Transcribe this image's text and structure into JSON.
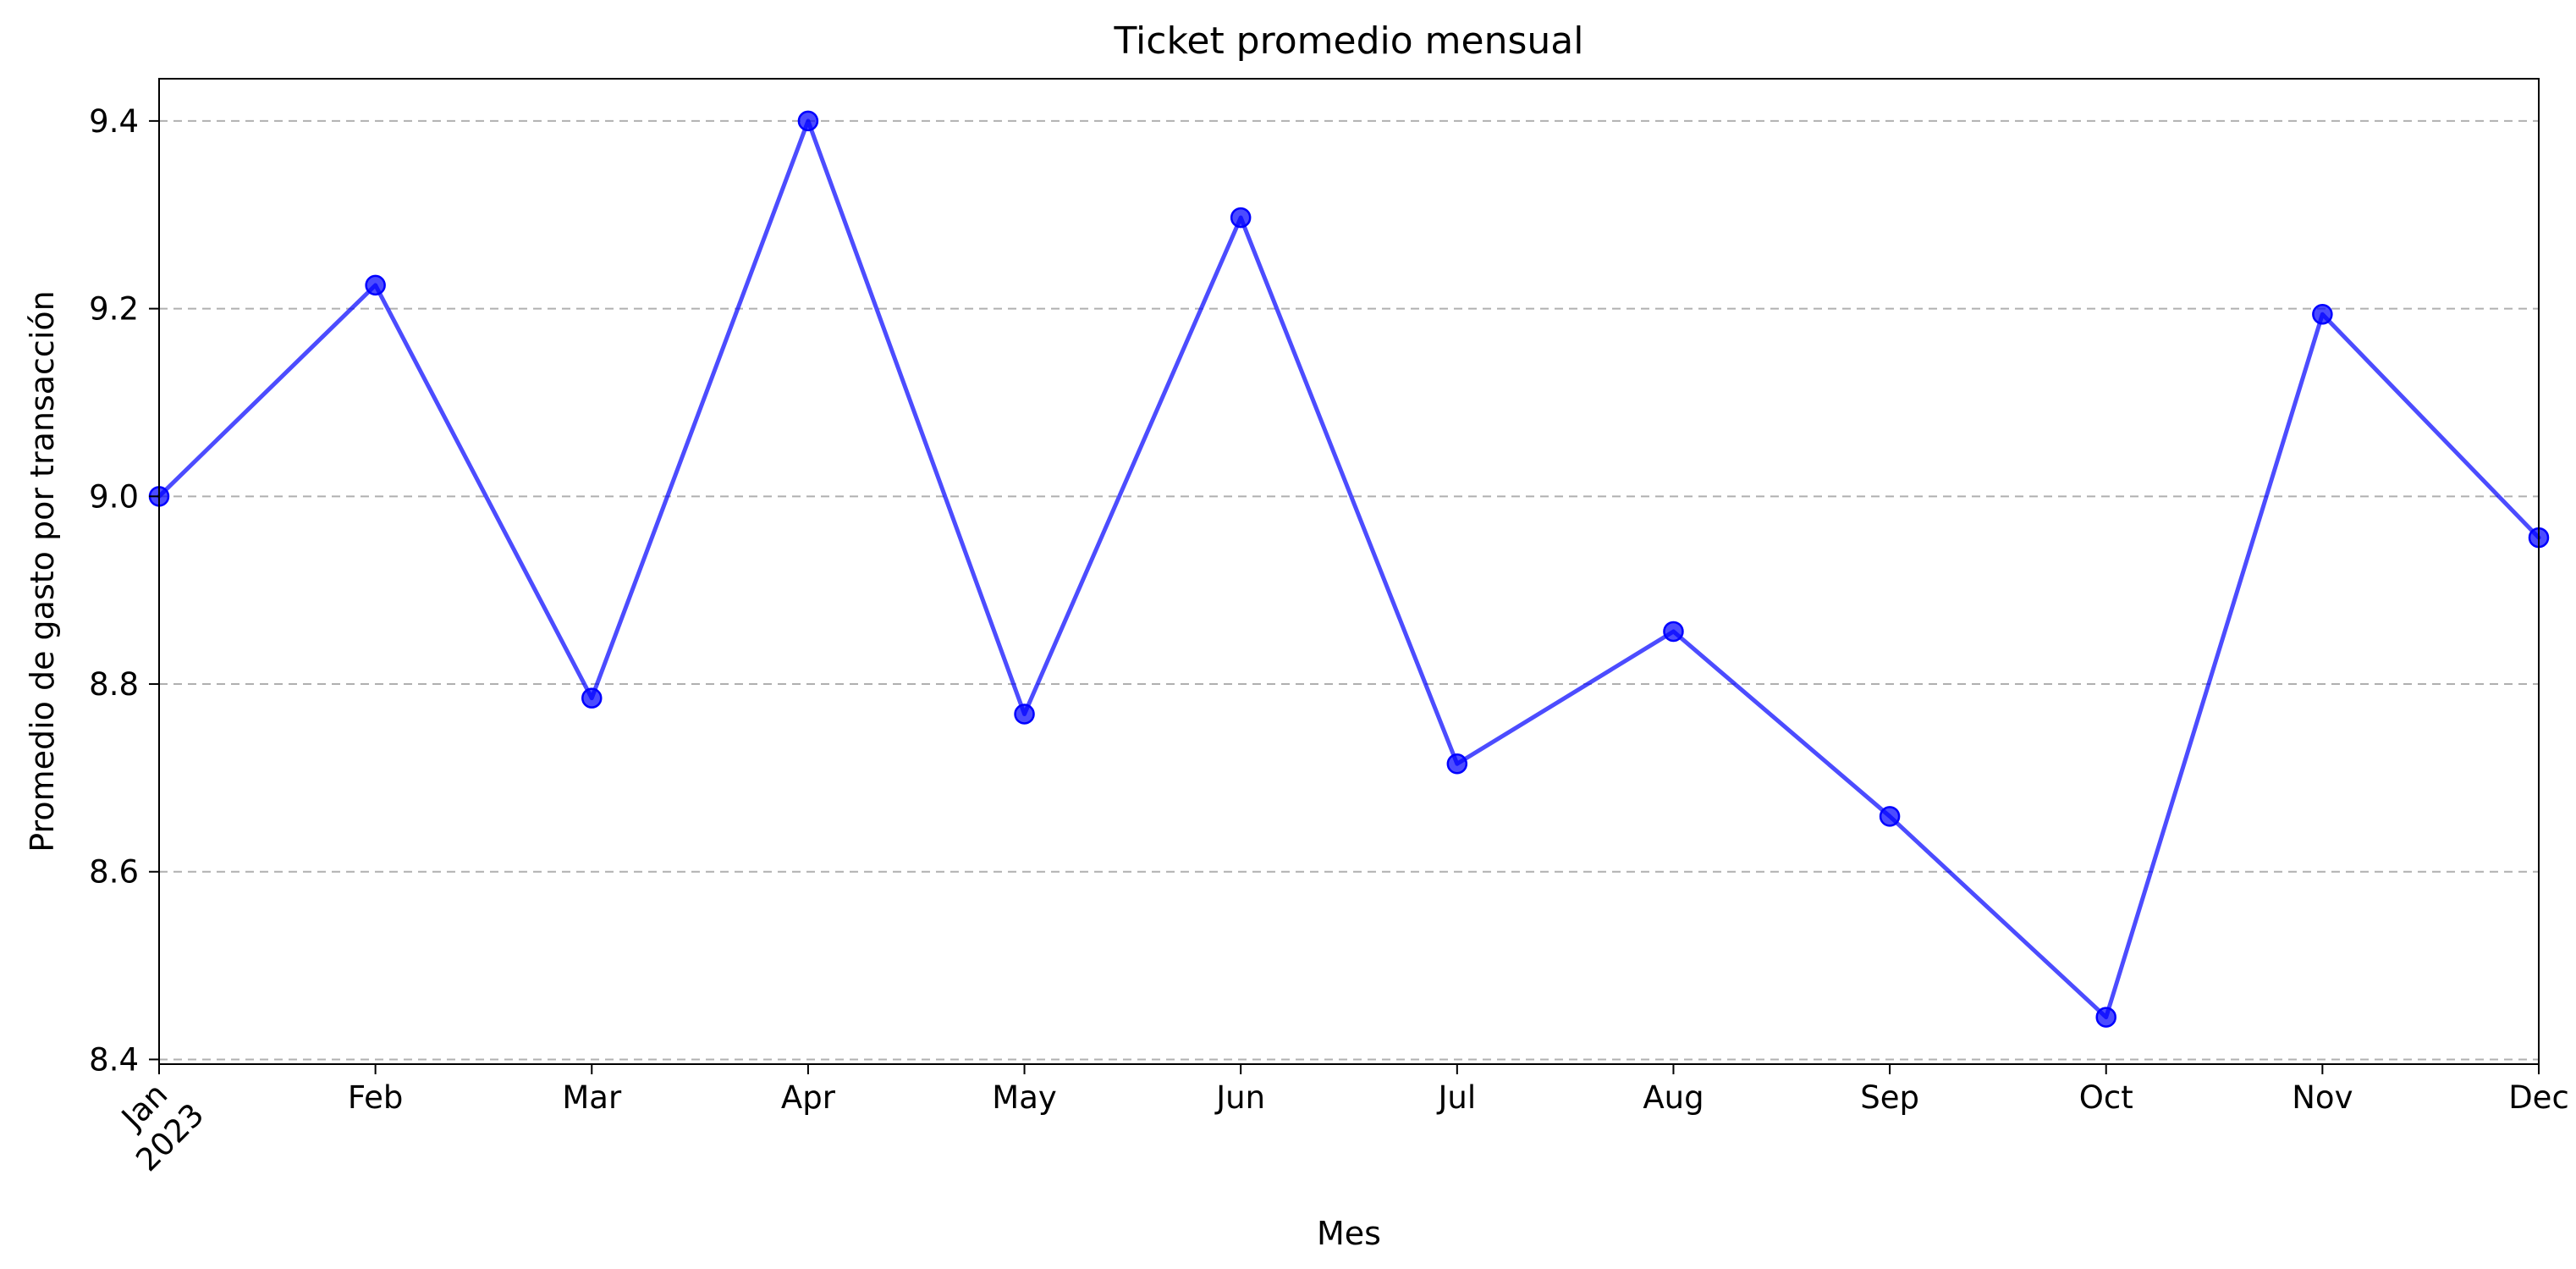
{
  "chart_data": {
    "type": "line",
    "title": "Ticket promedio mensual",
    "xlabel": "Mes",
    "ylabel": "Promedio de gasto por transacción",
    "x": [
      "Jan",
      "Feb",
      "Mar",
      "Apr",
      "May",
      "Jun",
      "Jul",
      "Aug",
      "Sep",
      "Oct",
      "Nov",
      "Dec"
    ],
    "x_year_label": "2023",
    "series": [
      {
        "values": [
          9.0,
          9.225,
          8.785,
          9.4,
          8.768,
          9.297,
          8.715,
          8.856,
          8.659,
          8.445,
          9.194,
          8.956
        ],
        "color": "#0000ff"
      }
    ],
    "ylim": [
      8.395,
      9.445
    ],
    "yticks": [
      8.4,
      8.6,
      8.8,
      9.0,
      9.2,
      9.4
    ],
    "ytick_labels": [
      "8.4",
      "8.6",
      "8.8",
      "9.0",
      "9.2",
      "9.4"
    ],
    "grid": "y-dashed",
    "legend": "none"
  }
}
